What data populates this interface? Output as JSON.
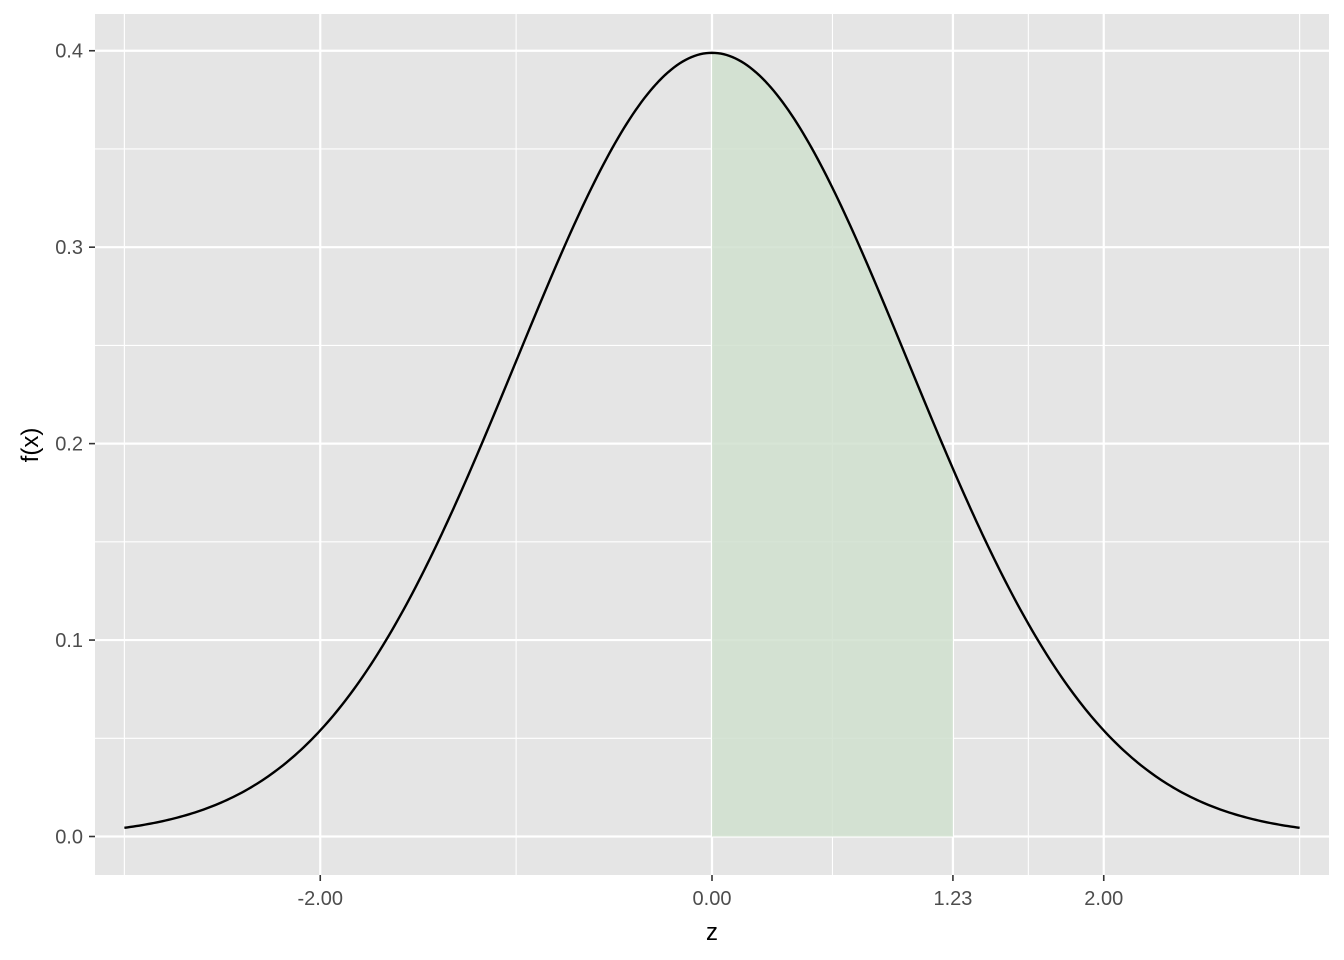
{
  "chart_data": {
    "type": "area",
    "distribution": "standard normal density",
    "xlabel": "z",
    "ylabel": "f(x)",
    "xlim": [
      -3.15,
      3.15
    ],
    "ylim": [
      -0.0196,
      0.4187
    ],
    "curve_range": [
      -3,
      3
    ],
    "curve_x_samples": [
      -3.0,
      -2.5,
      -2.0,
      -1.5,
      -1.0,
      -0.5,
      0.0,
      0.5,
      1.0,
      1.5,
      2.0,
      2.5,
      3.0
    ],
    "curve_y_samples": [
      0.0044,
      0.0175,
      0.054,
      0.1295,
      0.242,
      0.3521,
      0.3989,
      0.3521,
      0.242,
      0.1295,
      0.054,
      0.0175,
      0.0044
    ],
    "shaded_region": {
      "from": 0.0,
      "to": 1.23,
      "color": "#d0e0cf"
    },
    "x_ticks": [
      {
        "value": -2.0,
        "label": "-2.00"
      },
      {
        "value": 0.0,
        "label": "0.00"
      },
      {
        "value": 1.23,
        "label": "1.23"
      },
      {
        "value": 2.0,
        "label": "2.00"
      }
    ],
    "x_minor_grid": [
      -3.0,
      -1.0,
      0.615,
      1.615,
      3.0
    ],
    "y_ticks": [
      {
        "value": 0.0,
        "label": "0.0"
      },
      {
        "value": 0.1,
        "label": "0.1"
      },
      {
        "value": 0.2,
        "label": "0.2"
      },
      {
        "value": 0.3,
        "label": "0.3"
      },
      {
        "value": 0.4,
        "label": "0.4"
      }
    ],
    "y_minor_grid": [
      0.05,
      0.15,
      0.25,
      0.35
    ],
    "grid": true,
    "legend": "none",
    "colors": {
      "panel": "#e5e5e5",
      "grid": "#ffffff",
      "curve": "#000000",
      "tick_text": "#4d4d4d"
    }
  }
}
